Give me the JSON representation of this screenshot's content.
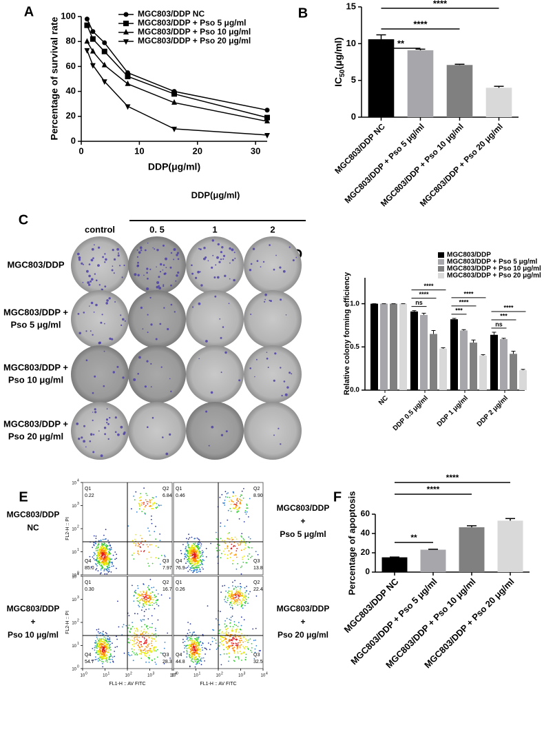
{
  "chart_data": [
    {
      "type": "line",
      "panel": "A",
      "xlabel": "DDP(μg/ml)",
      "ylabel": "Percentage of survival rate",
      "x": [
        1,
        2,
        4,
        8,
        16,
        32
      ],
      "xlim": [
        0,
        32
      ],
      "xticks": [
        0,
        10,
        20,
        30
      ],
      "ylim": [
        0,
        100
      ],
      "yticks": [
        0,
        20,
        40,
        60,
        80,
        100
      ],
      "series": [
        {
          "name": "MGC803/DDP  NC",
          "color": "#000000",
          "marker": "circle",
          "values": [
            98,
            88,
            79,
            55,
            40,
            25
          ]
        },
        {
          "name": "MGC803/DDP + Pso   5 μg/ml",
          "color": "#000000",
          "marker": "square",
          "values": [
            93,
            82,
            72,
            52,
            38,
            19
          ]
        },
        {
          "name": "MGC803/DDP + Pso 10 μg/ml",
          "color": "#000000",
          "marker": "triangle-up",
          "values": [
            80,
            72,
            61,
            46,
            31,
            16
          ]
        },
        {
          "name": "MGC803/DDP + Pso 20 μg/ml",
          "color": "#000000",
          "marker": "triangle-down",
          "values": [
            73,
            61,
            48,
            28,
            10,
            5
          ]
        }
      ]
    },
    {
      "type": "bar",
      "panel": "B",
      "ylabel": [
        "IC",
        "50",
        "(μg/ml)"
      ],
      "categories": [
        "MGC803/DDP NC",
        "MGC803/DDP + Pso 5 μg/ml",
        "MGC803/DDP + Pso 10 μg/ml",
        "MGC803/DDP + Pso 20 μg/ml"
      ],
      "values": [
        10.6,
        9.1,
        7.1,
        4.0
      ],
      "errors": [
        0.6,
        0.15,
        0.1,
        0.2
      ],
      "colors": [
        "#000000",
        "#a6a6ab",
        "#808080",
        "#d9d9d9"
      ],
      "ylim": [
        0,
        15
      ],
      "yticks": [
        0,
        5,
        10,
        15
      ],
      "annotations": [
        {
          "text": "**",
          "between": [
            0,
            1
          ]
        },
        {
          "text": "****",
          "between": [
            0,
            2
          ]
        },
        {
          "text": "****",
          "between": [
            0,
            3
          ]
        }
      ]
    },
    {
      "type": "grouped_bar",
      "panel": "D",
      "ylabel": "Relative colony forming efficiency",
      "categories": [
        "NC",
        "DDP 0.5 μg/ml",
        "DDP 1 μg/ml",
        "DDP 2 μg/ml"
      ],
      "series": [
        {
          "name": "MGC803/DDP",
          "color": "#000000",
          "values": [
            1.0,
            0.91,
            0.82,
            0.64
          ],
          "errors": [
            0,
            0.01,
            0.01,
            0.03
          ]
        },
        {
          "name": "MGC803/DDP + Pso   5 μg/ml",
          "color": "#a6a6ab",
          "values": [
            1.0,
            0.87,
            0.69,
            0.59
          ],
          "errors": [
            0,
            0.02,
            0.01,
            0.01
          ]
        },
        {
          "name": "MGC803/DDP + Pso 10 μg/ml",
          "color": "#808080",
          "values": [
            1.0,
            0.65,
            0.55,
            0.42
          ],
          "errors": [
            0,
            0.04,
            0.03,
            0.03
          ]
        },
        {
          "name": "MGC803/DDP + Pso 20 μg/ml",
          "color": "#d9d9d9",
          "values": [
            1.0,
            0.48,
            0.4,
            0.23
          ],
          "errors": [
            0,
            0.01,
            0.01,
            0.01
          ]
        }
      ],
      "ylim": [
        0,
        1.3
      ],
      "yticks": [
        {
          "value": 0,
          "label": "0.0"
        },
        {
          "value": 0.5,
          "label": "0.5"
        },
        {
          "value": 1,
          "label": "1.0"
        }
      ],
      "annotations": [
        {
          "category": 1,
          "text": "ns",
          "between": [
            0,
            1
          ]
        },
        {
          "category": 1,
          "text": "****",
          "between": [
            0,
            2
          ]
        },
        {
          "category": 1,
          "text": "****",
          "between": [
            0,
            3
          ]
        },
        {
          "category": 2,
          "text": "***",
          "between": [
            0,
            1
          ]
        },
        {
          "category": 2,
          "text": "****",
          "between": [
            0,
            2
          ]
        },
        {
          "category": 2,
          "text": "****",
          "between": [
            0,
            3
          ]
        },
        {
          "category": 3,
          "text": "ns",
          "between": [
            0,
            1
          ]
        },
        {
          "category": 3,
          "text": "***",
          "between": [
            0,
            2
          ]
        },
        {
          "category": 3,
          "text": "****",
          "between": [
            0,
            3
          ]
        }
      ]
    },
    {
      "type": "bar",
      "panel": "F",
      "ylabel": "Percentage of apoptosis",
      "categories": [
        "MGC803/DDP NC",
        "MGC803/DDP + Pso 5 μg/ml",
        "MGC803/DDP + Pso 10 μg/ml",
        "MGC803/DDP + Pso 20 μg/ml"
      ],
      "values": [
        15.3,
        23.2,
        46.5,
        53.3
      ],
      "errors": [
        0.3,
        0.5,
        1.5,
        2.2
      ],
      "colors": [
        "#000000",
        "#a6a6ab",
        "#808080",
        "#d9d9d9"
      ],
      "ylim": [
        0,
        60
      ],
      "yticks": [
        0,
        20,
        40,
        60
      ],
      "annotations": [
        {
          "text": "**",
          "between": [
            0,
            1
          ]
        },
        {
          "text": "****",
          "between": [
            0,
            2
          ]
        },
        {
          "text": "****",
          "between": [
            0,
            3
          ]
        }
      ]
    }
  ],
  "colony_panel": {
    "panel": "C",
    "header": "DDP(μg/ml)",
    "columns": [
      "control",
      "0. 5",
      "1",
      "2"
    ],
    "rows": [
      [
        "MGC803/DDP"
      ],
      [
        "MGC803/DDP +",
        "Pso 5 μg/ml"
      ],
      [
        "MGC803/DDP +",
        "Pso 10 μg/ml"
      ],
      [
        "MGC803/DDP +",
        "Pso 20 μg/ml"
      ]
    ]
  },
  "flow_panel": {
    "panel": "E",
    "ylabel": "FL2-H :: PI",
    "xlabel": "FL1-H :: AV FITC",
    "tick_base": "10",
    "tick_exponents": [
      "0",
      "1",
      "2",
      "3",
      "4"
    ],
    "plots": [
      {
        "label": [
          "MGC803/DDP",
          "NC"
        ],
        "quadrants": [
          {
            "name": "Q1",
            "value": "0.22"
          },
          {
            "name": "Q2",
            "value": "6.84"
          },
          {
            "name": "Q4",
            "value": "85.0"
          },
          {
            "name": "Q3",
            "value": "7.97"
          }
        ]
      },
      {
        "label": [
          "MGC803/DDP",
          "+",
          "Pso 5 μg/ml"
        ],
        "quadrants": [
          {
            "name": "Q1",
            "value": "0.46"
          },
          {
            "name": "Q2",
            "value": "8.90"
          },
          {
            "name": "Q4",
            "value": "76.9"
          },
          {
            "name": "Q3",
            "value": "13.8"
          }
        ]
      },
      {
        "label": [
          "MGC803/DDP",
          "+",
          "Pso 10 μg/ml"
        ],
        "quadrants": [
          {
            "name": "Q1",
            "value": "0.30"
          },
          {
            "name": "Q2",
            "value": "16.7"
          },
          {
            "name": "Q4",
            "value": "54.7"
          },
          {
            "name": "Q3",
            "value": "28.3"
          }
        ]
      },
      {
        "label": [
          "MGC803/DDP",
          "+",
          "Pso 20 μg/ml"
        ],
        "quadrants": [
          {
            "name": "Q1",
            "value": "0.26"
          },
          {
            "name": "Q2",
            "value": "22.4"
          },
          {
            "name": "Q4",
            "value": "44.8"
          },
          {
            "name": "Q3",
            "value": "32.5"
          }
        ]
      }
    ]
  }
}
